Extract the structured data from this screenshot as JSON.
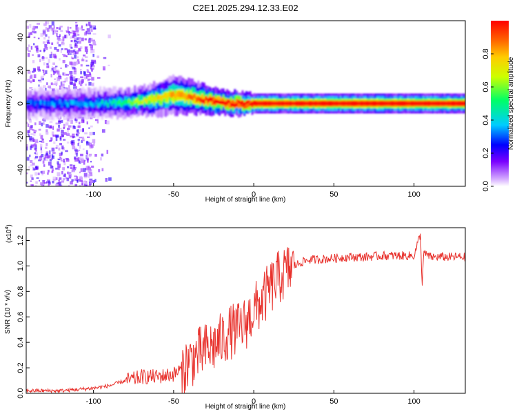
{
  "title": "C2E1.2025.294.12.33.E02",
  "chart_data": [
    {
      "type": "heatmap",
      "subtype": "spectrogram",
      "xlabel": "Height of straight line (km)",
      "ylabel": "Frequency (Hz)",
      "xlim": [
        -142,
        132
      ],
      "ylim": [
        -50,
        50
      ],
      "xticks": [
        -100,
        -50,
        0,
        50,
        100
      ],
      "xtick_labels": [
        "-100",
        "-50",
        "0",
        "50",
        "100"
      ],
      "yticks": [
        -40,
        -20,
        0,
        20,
        40
      ],
      "ytick_labels": [
        "-40",
        "-20",
        "0",
        "20",
        "40"
      ],
      "colorbar": {
        "label": "Normalized spectral amplitude",
        "range": [
          0,
          1
        ],
        "ticks": [
          0.0,
          0.2,
          0.4,
          0.6,
          0.8
        ],
        "tick_labels": [
          "0.0",
          "0.2",
          "0.4",
          "0.6",
          "0.8"
        ],
        "colormap": [
          "#ffffff",
          "#d9b3ff",
          "#7a00ff",
          "#0000ff",
          "#00ccff",
          "#00ff66",
          "#ccff00",
          "#ffcc00",
          "#ff6600",
          "#ff0000"
        ]
      },
      "ridge": [
        {
          "x": -142,
          "f": 0,
          "amp": 0.3,
          "w": 3
        },
        {
          "x": -120,
          "f": 0,
          "amp": 0.33,
          "w": 3
        },
        {
          "x": -100,
          "f": 0,
          "amp": 0.35,
          "w": 3
        },
        {
          "x": -80,
          "f": 0.5,
          "amp": 0.45,
          "w": 3
        },
        {
          "x": -70,
          "f": 1.5,
          "amp": 0.55,
          "w": 3
        },
        {
          "x": -60,
          "f": 3,
          "amp": 0.6,
          "w": 3.5
        },
        {
          "x": -50,
          "f": 5,
          "amp": 0.65,
          "w": 4
        },
        {
          "x": -40,
          "f": 4,
          "amp": 0.7,
          "w": 3.5
        },
        {
          "x": -30,
          "f": 2,
          "amp": 0.8,
          "w": 3
        },
        {
          "x": -20,
          "f": 0.5,
          "amp": 0.85,
          "w": 2.5
        },
        {
          "x": -10,
          "f": 0,
          "amp": 0.88,
          "w": 2.5
        },
        {
          "x": 0,
          "f": 0,
          "amp": 0.92,
          "w": 2
        },
        {
          "x": 20,
          "f": 0,
          "amp": 0.9,
          "w": 2
        },
        {
          "x": 50,
          "f": 0,
          "amp": 0.92,
          "w": 2
        },
        {
          "x": 100,
          "f": 0,
          "amp": 0.92,
          "w": 2
        },
        {
          "x": 132,
          "f": 0,
          "amp": 0.9,
          "w": 2
        }
      ],
      "noise_region": {
        "x": [
          -142,
          -100
        ],
        "f": [
          -50,
          50
        ],
        "amp": [
          0.1,
          0.3
        ]
      }
    },
    {
      "type": "line",
      "xlabel": "Height of straight line (km)",
      "ylabel": "SNR (10 * v/v)",
      "scale_note": "(x10",
      "scale_exponent": "4",
      "xlim": [
        -142,
        132
      ],
      "ylim": [
        0,
        1.3
      ],
      "xticks": [
        -100,
        -50,
        0,
        50,
        100
      ],
      "xtick_labels": [
        "-100",
        "-50",
        "0",
        "50",
        "100"
      ],
      "yticks": [
        0.0,
        0.2,
        0.4,
        0.6,
        0.8,
        1.0,
        1.2
      ],
      "ytick_labels": [
        "0.0",
        "0.2",
        "0.4",
        "0.6",
        "0.8",
        "1.0",
        "1.2"
      ],
      "color": "#e8322d",
      "series": [
        {
          "name": "SNR",
          "x": [
            -142,
            -130,
            -120,
            -110,
            -100,
            -95,
            -90,
            -85,
            -80,
            -75,
            -70,
            -65,
            -60,
            -55,
            -50,
            -45,
            -40,
            -35,
            -30,
            -25,
            -20,
            -15,
            -10,
            -5,
            0,
            5,
            10,
            15,
            20,
            25,
            30,
            35,
            40,
            50,
            60,
            70,
            80,
            90,
            100,
            104,
            105,
            106,
            110,
            120,
            132
          ],
          "y": [
            0.02,
            0.02,
            0.02,
            0.03,
            0.04,
            0.05,
            0.06,
            0.08,
            0.1,
            0.11,
            0.13,
            0.13,
            0.13,
            0.14,
            0.15,
            0.19,
            0.25,
            0.3,
            0.34,
            0.37,
            0.42,
            0.48,
            0.5,
            0.55,
            0.65,
            0.72,
            0.82,
            0.9,
            0.95,
            1.0,
            1.03,
            1.05,
            1.05,
            1.06,
            1.07,
            1.07,
            1.08,
            1.08,
            1.08,
            1.25,
            0.85,
            1.1,
            1.07,
            1.07,
            1.07
          ]
        }
      ]
    }
  ]
}
